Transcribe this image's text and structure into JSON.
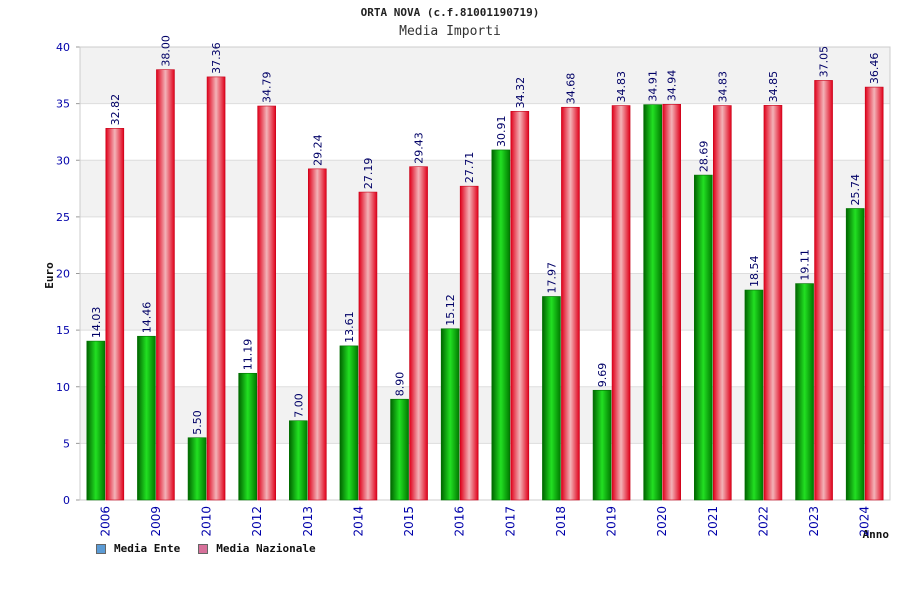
{
  "chart_data": {
    "type": "bar",
    "title": "ORTA NOVA (c.f.81001190719)",
    "subtitle": "Media Importi",
    "xlabel": "Anno",
    "ylabel": "Euro",
    "ylim": [
      0,
      40
    ],
    "yticks": [
      0,
      5,
      10,
      15,
      20,
      25,
      30,
      35,
      40
    ],
    "grid": true,
    "legend_position": "bottom-left",
    "categories": [
      "2006",
      "2009",
      "2010",
      "2012",
      "2013",
      "2014",
      "2015",
      "2016",
      "2017",
      "2018",
      "2019",
      "2020",
      "2021",
      "2022",
      "2023",
      "2024"
    ],
    "series": [
      {
        "name": "Media Ente",
        "color": "#00aa00",
        "legend_color": "#5b9bd5",
        "values": [
          14.03,
          14.46,
          5.5,
          11.19,
          7.0,
          13.61,
          8.9,
          15.12,
          30.91,
          17.97,
          9.69,
          34.91,
          28.69,
          18.54,
          19.11,
          25.74
        ],
        "labels": [
          "14.03",
          "14.46",
          "5.50",
          "11.19",
          "7.00",
          "13.61",
          "8.90",
          "15.12",
          "30.91",
          "17.97",
          "9.69",
          "34.91",
          "28.69",
          "18.54",
          "19.11",
          "25.74"
        ]
      },
      {
        "name": "Media Nazionale",
        "color": "#e8001c",
        "legend_color": "#d7709a",
        "values": [
          32.82,
          38.0,
          37.36,
          34.79,
          29.24,
          27.19,
          29.43,
          27.71,
          34.32,
          34.68,
          34.83,
          34.94,
          34.83,
          34.85,
          37.05,
          36.46
        ],
        "labels": [
          "32.82",
          "38.00",
          "37.36",
          "34.79",
          "29.24",
          "27.19",
          "29.43",
          "27.71",
          "34.32",
          "34.68",
          "34.83",
          "34.94",
          "34.83",
          "34.85",
          "37.05",
          "36.46"
        ]
      }
    ]
  }
}
